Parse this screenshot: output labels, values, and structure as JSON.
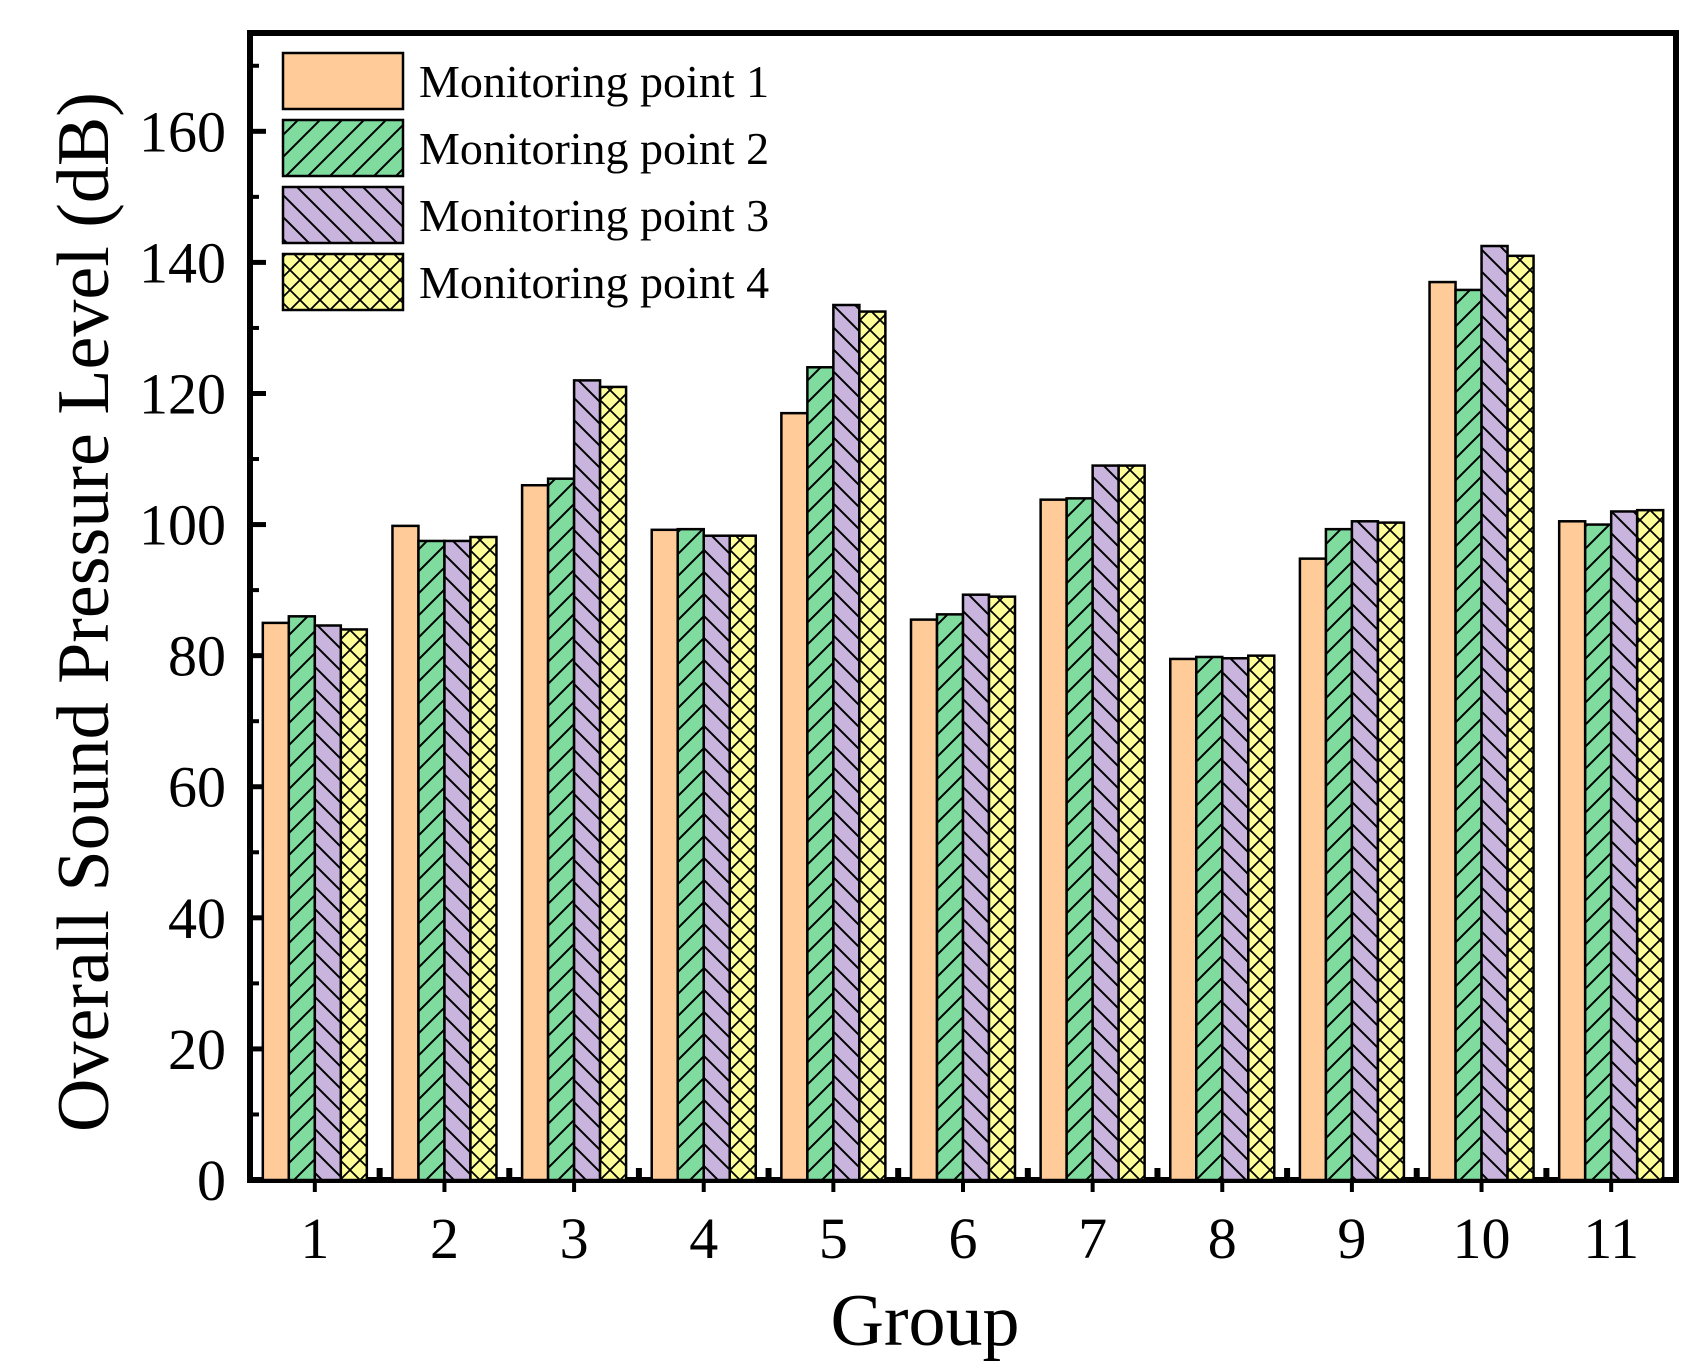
{
  "chart_data": {
    "type": "bar",
    "title": "",
    "xlabel": "Group",
    "ylabel": "Overall Sound Pressure Level (dB)",
    "ylim": [
      0,
      175
    ],
    "yticks": [
      0,
      20,
      40,
      60,
      80,
      100,
      120,
      140,
      160
    ],
    "categories": [
      "1",
      "2",
      "3",
      "4",
      "5",
      "6",
      "7",
      "8",
      "9",
      "10",
      "11"
    ],
    "legend_position": "top-left",
    "series": [
      {
        "name": "Monitoring point 1",
        "color": "#FFCC99",
        "pattern": "none",
        "values": [
          85.0,
          99.8,
          106.0,
          99.2,
          117.0,
          85.5,
          103.8,
          79.5,
          94.8,
          137.0,
          100.5
        ]
      },
      {
        "name": "Monitoring point 2",
        "color": "#7FDB9E",
        "pattern": "forward-diagonal",
        "values": [
          86.0,
          97.5,
          107.0,
          99.3,
          124.0,
          86.3,
          104.0,
          79.8,
          99.3,
          135.8,
          100.0
        ]
      },
      {
        "name": "Monitoring point 3",
        "color": "#C8B4DC",
        "pattern": "back-diagonal",
        "values": [
          84.6,
          97.5,
          122.0,
          98.3,
          133.5,
          89.3,
          109.0,
          79.6,
          100.5,
          142.5,
          102.0
        ]
      },
      {
        "name": "Monitoring point 4",
        "color": "#FFFF99",
        "pattern": "crosshatch",
        "values": [
          84.0,
          98.1,
          121.0,
          98.3,
          132.5,
          89.0,
          109.0,
          80.0,
          100.3,
          141.0,
          102.2
        ]
      }
    ]
  }
}
